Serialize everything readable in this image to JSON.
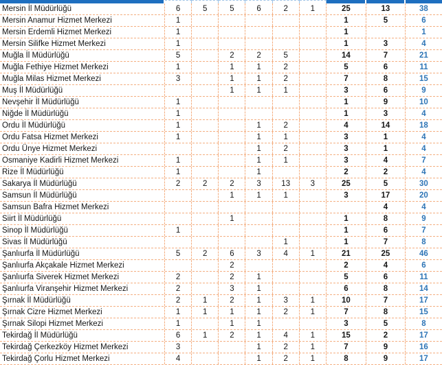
{
  "colors": {
    "header_fill": "#1e6fc0",
    "grid_line": "#f4ae80",
    "header_grid_line": "#9dc3e6",
    "total_text": "#2e75b6",
    "body_text": "#151515"
  },
  "table": {
    "columns": [
      "name",
      "v1",
      "v2",
      "v3",
      "v4",
      "v5",
      "v6",
      "subtotal_a",
      "subtotal_b",
      "total"
    ],
    "rows": [
      {
        "name": "Mersin İl Müdürlüğü",
        "values": [
          "6",
          "5",
          "5",
          "6",
          "2",
          "1"
        ],
        "subtotal_a": "25",
        "subtotal_b": "13",
        "total": "38"
      },
      {
        "name": "Mersin Anamur Hizmet Merkezi",
        "values": [
          "1",
          "",
          "",
          "",
          "",
          ""
        ],
        "subtotal_a": "1",
        "subtotal_b": "5",
        "total": "6"
      },
      {
        "name": "Mersin Erdemli Hizmet Merkezi",
        "values": [
          "1",
          "",
          "",
          "",
          "",
          ""
        ],
        "subtotal_a": "1",
        "subtotal_b": "",
        "total": "1"
      },
      {
        "name": "Mersin Silifke Hizmet Merkezi",
        "values": [
          "1",
          "",
          "",
          "",
          "",
          ""
        ],
        "subtotal_a": "1",
        "subtotal_b": "3",
        "total": "4"
      },
      {
        "name": "Muğla İl Müdürlüğü",
        "values": [
          "5",
          "",
          "2",
          "2",
          "5",
          ""
        ],
        "subtotal_a": "14",
        "subtotal_b": "7",
        "total": "21"
      },
      {
        "name": "Muğla Fethiye Hizmet Merkezi",
        "values": [
          "1",
          "",
          "1",
          "1",
          "2",
          ""
        ],
        "subtotal_a": "5",
        "subtotal_b": "6",
        "total": "11"
      },
      {
        "name": "Muğla Milas Hizmet Merkezi",
        "values": [
          "3",
          "",
          "1",
          "1",
          "2",
          ""
        ],
        "subtotal_a": "7",
        "subtotal_b": "8",
        "total": "15"
      },
      {
        "name": "Muş İl Müdürlüğü",
        "values": [
          "",
          "",
          "1",
          "1",
          "1",
          ""
        ],
        "subtotal_a": "3",
        "subtotal_b": "6",
        "total": "9"
      },
      {
        "name": "Nevşehir İl Müdürlüğü",
        "values": [
          "1",
          "",
          "",
          "",
          "",
          ""
        ],
        "subtotal_a": "1",
        "subtotal_b": "9",
        "total": "10"
      },
      {
        "name": "Niğde İl Müdürlüğü",
        "values": [
          "1",
          "",
          "",
          "",
          "",
          ""
        ],
        "subtotal_a": "1",
        "subtotal_b": "3",
        "total": "4"
      },
      {
        "name": "Ordu İl Müdürlüğü",
        "values": [
          "1",
          "",
          "",
          "1",
          "2",
          ""
        ],
        "subtotal_a": "4",
        "subtotal_b": "14",
        "total": "18"
      },
      {
        "name": "Ordu Fatsa Hizmet Merkezi",
        "values": [
          "1",
          "",
          "",
          "1",
          "1",
          ""
        ],
        "subtotal_a": "3",
        "subtotal_b": "1",
        "total": "4"
      },
      {
        "name": "Ordu Ünye Hizmet Merkezi",
        "values": [
          "",
          "",
          "",
          "1",
          "2",
          ""
        ],
        "subtotal_a": "3",
        "subtotal_b": "1",
        "total": "4"
      },
      {
        "name": "Osmaniye Kadirli Hizmet Merkezi",
        "values": [
          "1",
          "",
          "",
          "1",
          "1",
          ""
        ],
        "subtotal_a": "3",
        "subtotal_b": "4",
        "total": "7"
      },
      {
        "name": "Rize İl Müdürlüğü",
        "values": [
          "1",
          "",
          "",
          "1",
          "",
          ""
        ],
        "subtotal_a": "2",
        "subtotal_b": "2",
        "total": "4"
      },
      {
        "name": "Sakarya İl Müdürlüğü",
        "values": [
          "2",
          "2",
          "2",
          "3",
          "13",
          "3"
        ],
        "subtotal_a": "25",
        "subtotal_b": "5",
        "total": "30"
      },
      {
        "name": "Samsun İl Müdürlüğü",
        "values": [
          "",
          "",
          "1",
          "1",
          "1",
          ""
        ],
        "subtotal_a": "3",
        "subtotal_b": "17",
        "total": "20"
      },
      {
        "name": "Samsun Bafra Hizmet Merkezi",
        "values": [
          "",
          "",
          "",
          "",
          "",
          ""
        ],
        "subtotal_a": "",
        "subtotal_b": "4",
        "total": "4"
      },
      {
        "name": "Siirt İl Müdürlüğü",
        "values": [
          "",
          "",
          "1",
          "",
          "",
          ""
        ],
        "subtotal_a": "1",
        "subtotal_b": "8",
        "total": "9"
      },
      {
        "name": "Sinop İl Müdürlüğü",
        "values": [
          "1",
          "",
          "",
          "",
          "",
          ""
        ],
        "subtotal_a": "1",
        "subtotal_b": "6",
        "total": "7"
      },
      {
        "name": "Sivas İl Müdürlüğü",
        "values": [
          "",
          "",
          "",
          "",
          "1",
          ""
        ],
        "subtotal_a": "1",
        "subtotal_b": "7",
        "total": "8"
      },
      {
        "name": "Şanlıurfa İl Müdürlüğü",
        "values": [
          "5",
          "2",
          "6",
          "3",
          "4",
          "1"
        ],
        "subtotal_a": "21",
        "subtotal_b": "25",
        "total": "46"
      },
      {
        "name": "Şanlıurfa Akçakale Hizmet Merkezi",
        "values": [
          "",
          "",
          "2",
          "",
          "",
          ""
        ],
        "subtotal_a": "2",
        "subtotal_b": "4",
        "total": "6"
      },
      {
        "name": "Şanlıurfa Siverek Hizmet Merkezi",
        "values": [
          "2",
          "",
          "2",
          "1",
          "",
          ""
        ],
        "subtotal_a": "5",
        "subtotal_b": "6",
        "total": "11"
      },
      {
        "name": "Şanlıurfa Viranşehir Hizmet Merkezi",
        "values": [
          "2",
          "",
          "3",
          "1",
          "",
          ""
        ],
        "subtotal_a": "6",
        "subtotal_b": "8",
        "total": "14"
      },
      {
        "name": "Şırnak İl Müdürlüğü",
        "values": [
          "2",
          "1",
          "2",
          "1",
          "3",
          "1"
        ],
        "subtotal_a": "10",
        "subtotal_b": "7",
        "total": "17"
      },
      {
        "name": "Şırnak Cizre Hizmet Merkezi",
        "values": [
          "1",
          "1",
          "1",
          "1",
          "2",
          "1"
        ],
        "subtotal_a": "7",
        "subtotal_b": "8",
        "total": "15"
      },
      {
        "name": "Şırnak Silopi Hizmet Merkezi",
        "values": [
          "1",
          "",
          "1",
          "1",
          "",
          ""
        ],
        "subtotal_a": "3",
        "subtotal_b": "5",
        "total": "8"
      },
      {
        "name": "Tekirdağ İl Müdürlüğü",
        "values": [
          "6",
          "1",
          "2",
          "1",
          "4",
          "1"
        ],
        "subtotal_a": "15",
        "subtotal_b": "2",
        "total": "17"
      },
      {
        "name": "Tekirdağ Çerkezköy Hizmet Merkezi",
        "values": [
          "3",
          "",
          "",
          "1",
          "2",
          "1"
        ],
        "subtotal_a": "7",
        "subtotal_b": "9",
        "total": "16"
      },
      {
        "name": "Tekirdağ Çorlu Hizmet Merkezi",
        "values": [
          "4",
          "",
          "",
          "1",
          "2",
          "1"
        ],
        "subtotal_a": "8",
        "subtotal_b": "9",
        "total": "17"
      }
    ]
  }
}
